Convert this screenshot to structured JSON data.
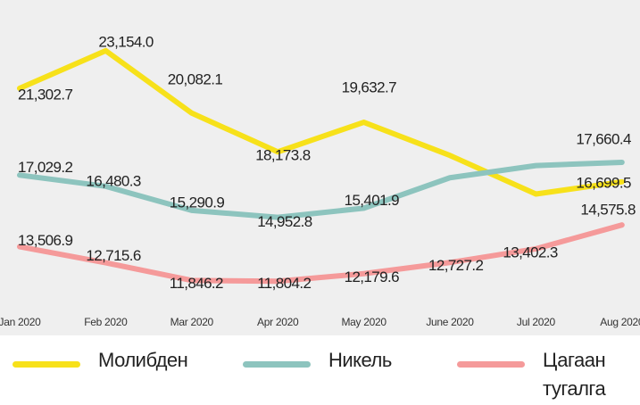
{
  "chart_data": {
    "type": "line",
    "categories": [
      "Jan 2020",
      "Feb 2020",
      "Mar 2020",
      "Apr 2020",
      "May 2020",
      "June 2020",
      "Jul 2020",
      "Aug 2020"
    ],
    "ylim": [
      10500,
      25650
    ],
    "series": [
      {
        "name": "Молибден",
        "color": "#f7e11a",
        "values": [
          21302.7,
          23154.0,
          20082.1,
          18173.8,
          19632.7,
          18000,
          16100,
          16699.5
        ],
        "value_labels": [
          "21,302.7",
          "23,154.0",
          "20,082.1",
          "18,173.8",
          "19,632.7",
          null,
          null,
          "16,699.5"
        ]
      },
      {
        "name": "Никель",
        "color": "#8dc4be",
        "values": [
          17029.2,
          16480.3,
          15290.9,
          14952.8,
          15401.9,
          16900,
          17500,
          17660.4
        ],
        "value_labels": [
          "17,029.2",
          "16,480.3",
          "15,290.9",
          "14,952.8",
          "15,401.9",
          null,
          null,
          "17,660.4"
        ]
      },
      {
        "name": "Цагаан тугалга",
        "color": "#f59a9a",
        "values": [
          13506.9,
          12715.6,
          11846.2,
          11804.2,
          12179.6,
          12727.2,
          13402.3,
          14575.8
        ],
        "value_labels": [
          "13,506.9",
          "12,715.6",
          "11,846.2",
          "11,804.2",
          "12,179.6",
          "12,727.2",
          "13,402.3",
          "14,575.8"
        ]
      }
    ]
  }
}
